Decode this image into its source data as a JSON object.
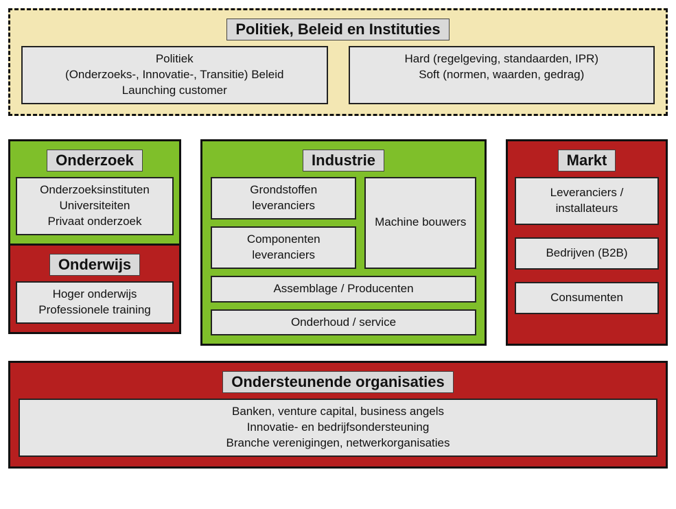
{
  "colors": {
    "beige": "#f3e7b3",
    "green": "#7fbf2a",
    "red": "#b61f1f",
    "chip_bg": "#d9d9d9",
    "sub_bg": "#e6e6e6",
    "border": "#111111"
  },
  "top": {
    "title": "Politiek, Beleid en Instituties",
    "left_lines": [
      "Politiek",
      "(Onderzoeks-, Innovatie-,  Transitie) Beleid",
      "Launching customer"
    ],
    "right_lines": [
      "Hard (regelgeving, standaarden, IPR)",
      "Soft (normen, waarden, gedrag)"
    ]
  },
  "onderzoek": {
    "title": "Onderzoek",
    "lines": [
      "Onderzoeksinstituten",
      "Universiteiten",
      "Privaat onderzoek"
    ]
  },
  "onderwijs": {
    "title": "Onderwijs",
    "lines": [
      "Hoger onderwijs",
      "Professionele training"
    ]
  },
  "industrie": {
    "title": "Industrie",
    "grondstoffen": "Grondstoffen leveranciers",
    "componenten": "Componenten leveranciers",
    "machine": "Machine bouwers",
    "assemblage": "Assemblage / Producenten",
    "onderhoud": "Onderhoud / service"
  },
  "markt": {
    "title": "Markt",
    "leveranciers": "Leveranciers / installateurs",
    "b2b": "Bedrijven (B2B)",
    "consumenten": "Consumenten"
  },
  "bottom": {
    "title": "Ondersteunende organisaties",
    "lines": [
      "Banken, venture capital, business angels",
      "Innovatie- en bedrijfsondersteuning",
      "Branche verenigingen, netwerkorganisaties"
    ]
  }
}
